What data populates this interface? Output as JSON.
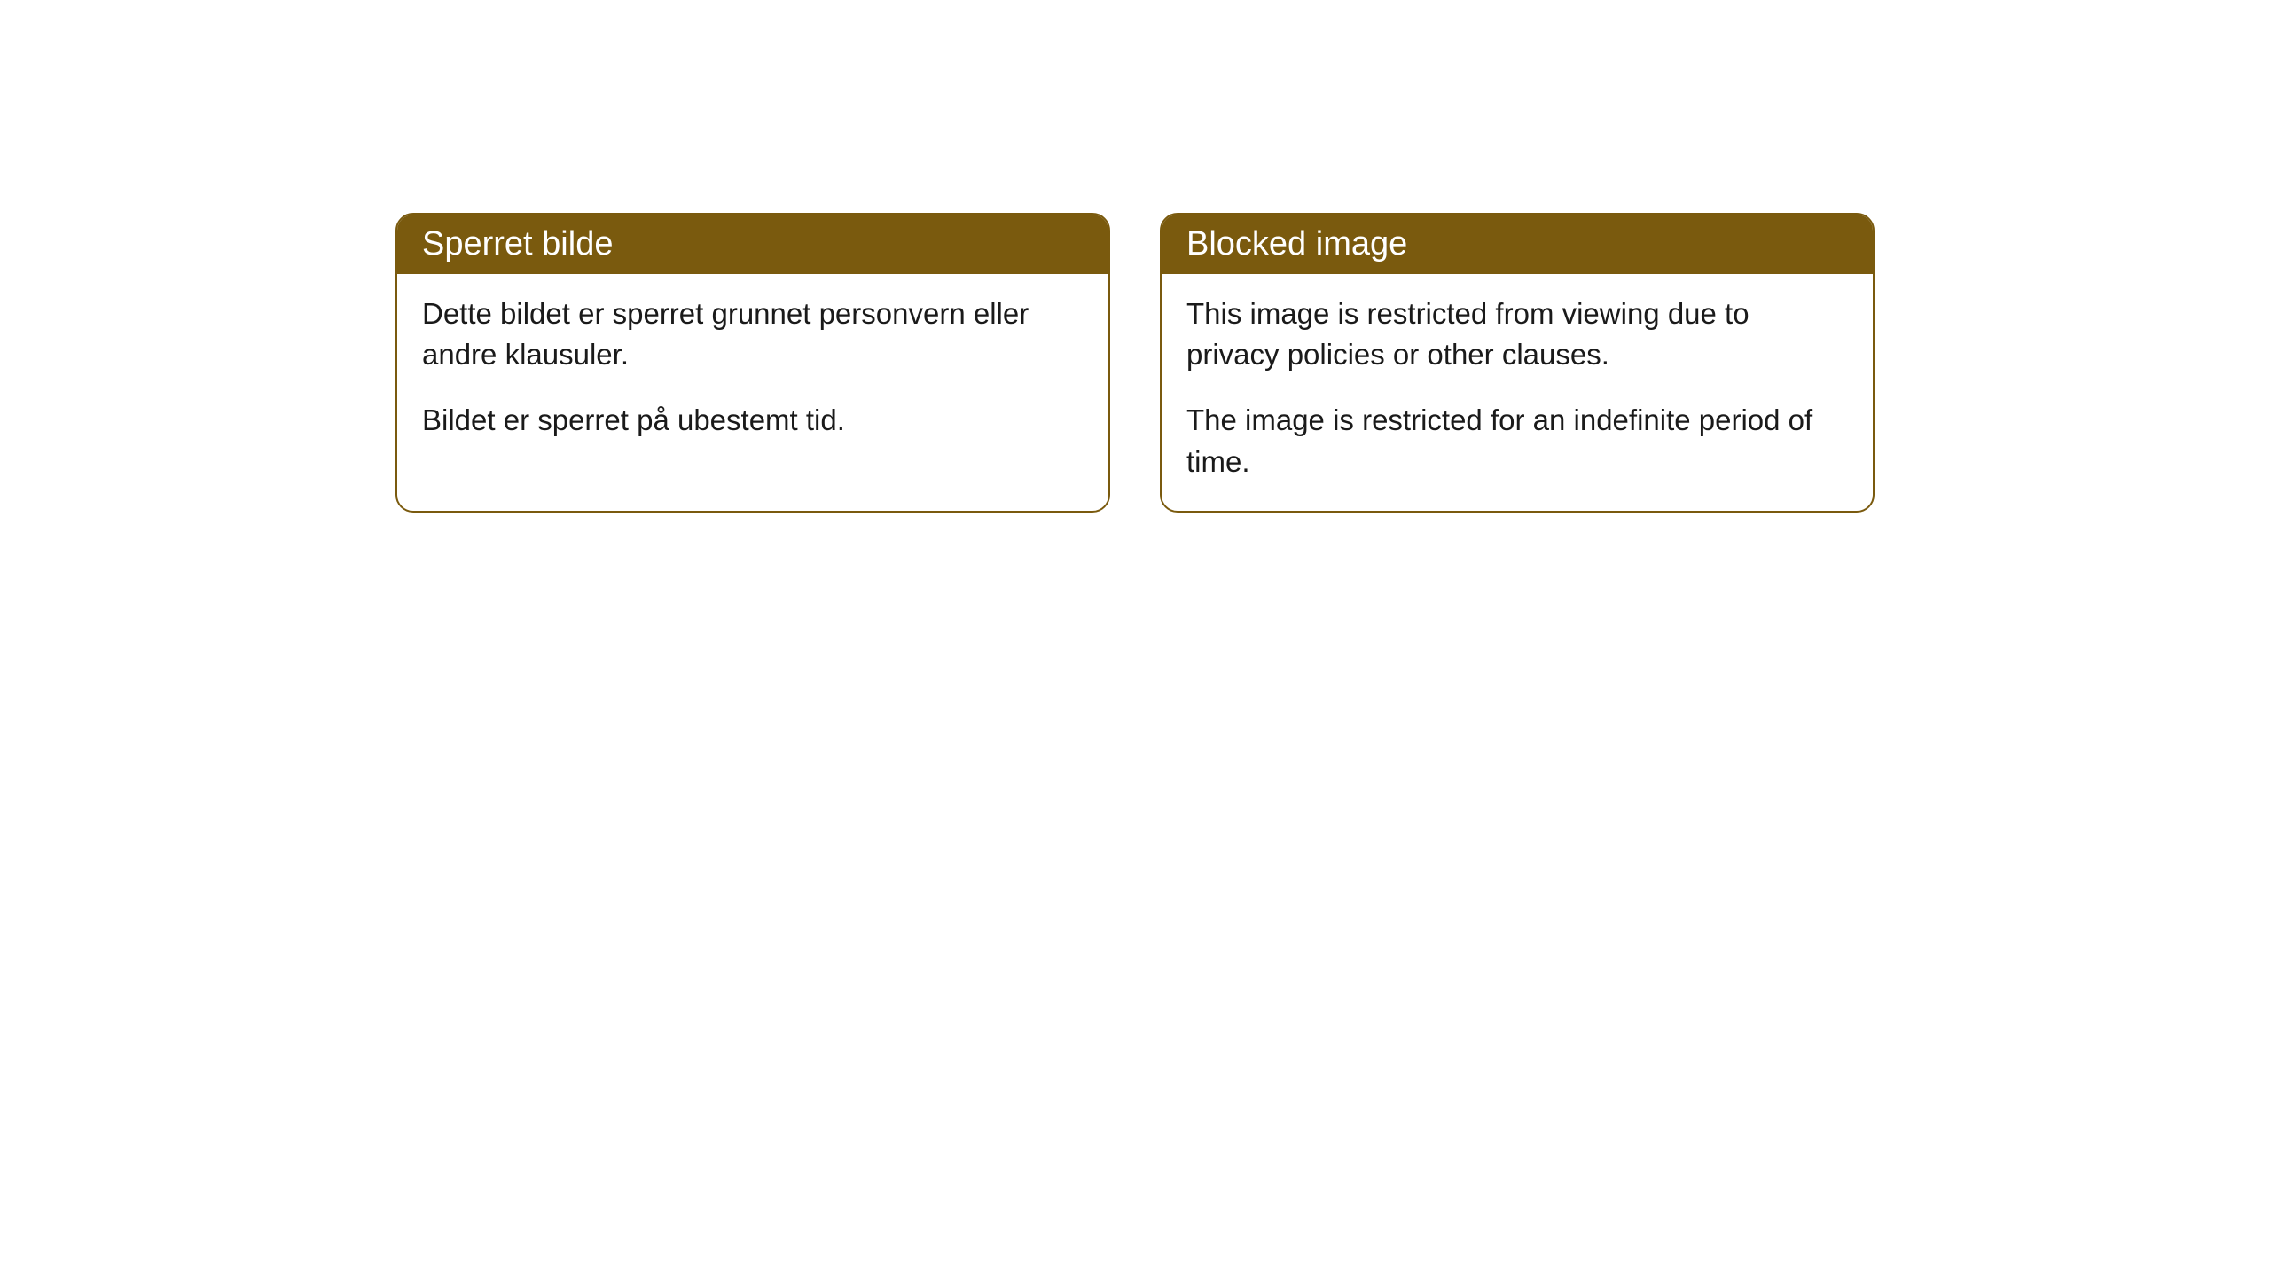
{
  "cards": [
    {
      "title": "Sperret bilde",
      "paragraph1": "Dette bildet er sperret grunnet personvern eller andre klausuler.",
      "paragraph2": "Bildet er sperret på ubestemt tid."
    },
    {
      "title": "Blocked image",
      "paragraph1": "This image is restricted from viewing due to privacy policies or other clauses.",
      "paragraph2": "The image is restricted for an indefinite period of time."
    }
  ],
  "styling": {
    "header_background": "#7a5a0e",
    "header_text_color": "#ffffff",
    "border_color": "#7a5a0e",
    "body_text_color": "#1a1a1a",
    "card_background": "#ffffff",
    "page_background": "#ffffff",
    "border_radius": 20,
    "header_fontsize": 38,
    "body_fontsize": 33
  }
}
